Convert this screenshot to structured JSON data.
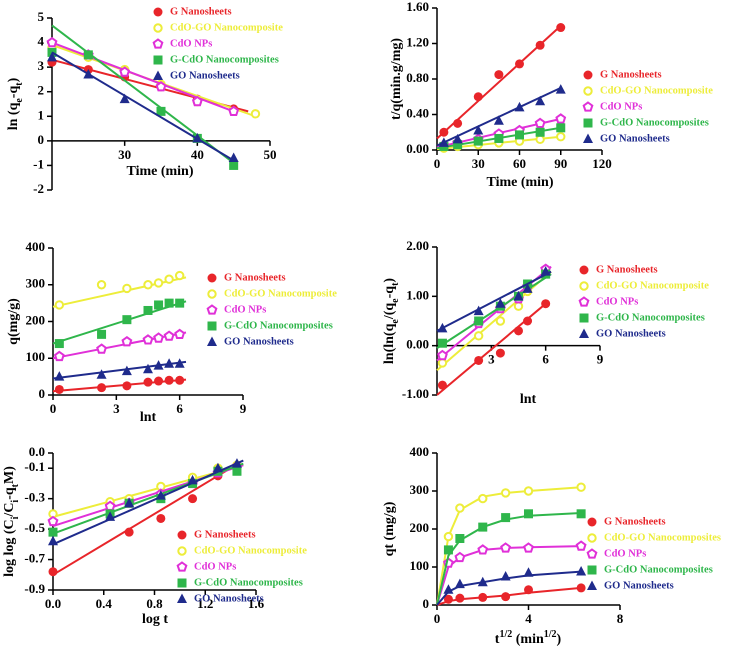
{
  "chart_data": [
    {
      "type": "scatter",
      "xlabel": "Time (min)",
      "ylabel": [
        "ln (q",
        "e",
        "-q",
        "t",
        ")"
      ],
      "xlim": [
        20,
        50
      ],
      "xticks": [
        30,
        40,
        50
      ],
      "ylim": [
        -2,
        5
      ],
      "yticks": [
        -2,
        -1,
        0,
        1,
        2,
        3,
        4,
        5
      ],
      "x_axis_at": 0,
      "series": [
        {
          "name": "G Nanosheets",
          "color": "#e8252a",
          "marker": "circle",
          "x": [
            20,
            25,
            30,
            35,
            40,
            45
          ],
          "values": [
            3.2,
            2.9,
            2.6,
            2.2,
            1.7,
            1.3
          ],
          "fit_x": [
            20,
            47
          ],
          "fit_y": [
            3.3,
            1.2
          ]
        },
        {
          "name": "CdO-GO Nanocomposite",
          "color": "#eded3a",
          "marker": "ring",
          "x": [
            20,
            25,
            30,
            35,
            40,
            48
          ],
          "values": [
            3.8,
            3.4,
            2.9,
            2.3,
            1.6,
            1.1
          ],
          "fit_x": [
            20,
            48
          ],
          "fit_y": [
            3.9,
            1.0
          ]
        },
        {
          "name": "CdO NPs",
          "color": "#e030d8",
          "marker": "pentagon",
          "x": [
            20,
            25,
            30,
            35,
            40,
            45
          ],
          "values": [
            4.0,
            3.5,
            2.8,
            2.2,
            1.6,
            1.2
          ],
          "fit_x": [
            20,
            45
          ],
          "fit_y": [
            4.0,
            1.2
          ]
        },
        {
          "name": "G-CdO Nanocomposites",
          "color": "#2fb64b",
          "marker": "square",
          "x": [
            20,
            25,
            35,
            40,
            45
          ],
          "values": [
            3.6,
            3.5,
            1.2,
            0.1,
            -1.0
          ],
          "fit_x": [
            20,
            45
          ],
          "fit_y": [
            4.7,
            -0.9
          ]
        },
        {
          "name": "GO Nanosheets",
          "color": "#1f2b8c",
          "marker": "triangle",
          "x": [
            20,
            25,
            30,
            40,
            45
          ],
          "values": [
            3.4,
            2.7,
            1.7,
            0.1,
            -0.7
          ],
          "fit_x": [
            20,
            45
          ],
          "fit_y": [
            3.6,
            -0.8
          ]
        }
      ]
    },
    {
      "type": "scatter",
      "xlabel": "Time (min)",
      "ylabel": "t/q(min.g/mg)",
      "xlim": [
        0,
        120
      ],
      "xticks": [
        0,
        30,
        60,
        90,
        120
      ],
      "ylim": [
        0,
        1.6
      ],
      "yticks": [
        {
          "value": 0,
          "label": "0.00"
        },
        {
          "value": 0.4,
          "label": "0.40"
        },
        {
          "value": 0.8,
          "label": "0.80"
        },
        {
          "value": 1.2,
          "label": "1.20"
        },
        {
          "value": 1.6,
          "label": "1.60"
        }
      ],
      "series": [
        {
          "name": "G Nanosheets",
          "color": "#e8252a",
          "marker": "circle",
          "x": [
            5,
            15,
            30,
            45,
            60,
            75,
            90
          ],
          "values": [
            0.2,
            0.3,
            0.6,
            0.85,
            0.97,
            1.18,
            1.38
          ],
          "fit_x": [
            0,
            90
          ],
          "fit_y": [
            0.13,
            1.4
          ]
        },
        {
          "name": "CdO-GO Nanocomposite",
          "color": "#eded3a",
          "marker": "ring",
          "x": [
            5,
            15,
            30,
            45,
            60,
            75,
            90
          ],
          "values": [
            0.02,
            0.04,
            0.06,
            0.08,
            0.1,
            0.12,
            0.15
          ],
          "fit_x": [
            0,
            90
          ],
          "fit_y": [
            0.01,
            0.15
          ]
        },
        {
          "name": "CdO NPs",
          "color": "#e030d8",
          "marker": "pentagon",
          "x": [
            5,
            15,
            30,
            45,
            60,
            75,
            90
          ],
          "values": [
            0.05,
            0.08,
            0.12,
            0.18,
            0.22,
            0.3,
            0.35
          ],
          "fit_x": [
            0,
            90
          ],
          "fit_y": [
            0.03,
            0.35
          ]
        },
        {
          "name": "G-CdO Nanocomposites",
          "color": "#2fb64b",
          "marker": "square",
          "x": [
            5,
            15,
            30,
            45,
            60,
            75,
            90
          ],
          "values": [
            0.04,
            0.06,
            0.1,
            0.13,
            0.17,
            0.2,
            0.25
          ],
          "fit_x": [
            0,
            90
          ],
          "fit_y": [
            0.02,
            0.25
          ]
        },
        {
          "name": "GO Nanosheets",
          "color": "#1f2b8c",
          "marker": "triangle",
          "x": [
            5,
            15,
            30,
            45,
            60,
            75,
            90
          ],
          "values": [
            0.08,
            0.12,
            0.22,
            0.33,
            0.48,
            0.55,
            0.68
          ],
          "fit_x": [
            0,
            90
          ],
          "fit_y": [
            0.05,
            0.7
          ]
        }
      ]
    },
    {
      "type": "scatter",
      "xlabel": "lnt",
      "ylabel": "q(mg/g)",
      "xlim": [
        0,
        9
      ],
      "xticks": [
        0,
        3,
        6,
        9
      ],
      "ylim": [
        0,
        400
      ],
      "yticks": [
        0,
        100,
        200,
        300,
        400
      ],
      "series": [
        {
          "name": "G Nanosheets",
          "color": "#e8252a",
          "marker": "circle",
          "x": [
            0.3,
            2.3,
            3.5,
            4.5,
            5,
            5.5,
            6
          ],
          "values": [
            15,
            20,
            25,
            35,
            38,
            40,
            40
          ],
          "fit_x": [
            0,
            6.3
          ],
          "fit_y": [
            10,
            42
          ]
        },
        {
          "name": "CdO-GO Nanocomposite",
          "color": "#eded3a",
          "marker": "ring",
          "x": [
            0.3,
            2.3,
            3.5,
            4.5,
            5,
            5.5,
            6
          ],
          "values": [
            245,
            300,
            290,
            300,
            305,
            315,
            325
          ],
          "fit_x": [
            0,
            6.3
          ],
          "fit_y": [
            240,
            320
          ]
        },
        {
          "name": "CdO NPs",
          "color": "#e030d8",
          "marker": "pentagon",
          "x": [
            0.3,
            2.3,
            3.5,
            4.5,
            5,
            5.5,
            6
          ],
          "values": [
            105,
            125,
            145,
            150,
            155,
            160,
            165
          ],
          "fit_x": [
            0,
            6.3
          ],
          "fit_y": [
            100,
            170
          ]
        },
        {
          "name": "G-CdO Nanocomposites",
          "color": "#2fb64b",
          "marker": "square",
          "x": [
            0.3,
            2.3,
            3.5,
            4.5,
            5,
            5.5,
            6
          ],
          "values": [
            140,
            165,
            205,
            230,
            245,
            250,
            250
          ],
          "fit_x": [
            0,
            6.3
          ],
          "fit_y": [
            140,
            255
          ]
        },
        {
          "name": "GO Nanosheets",
          "color": "#1f2b8c",
          "marker": "triangle",
          "x": [
            0.3,
            2.3,
            3.5,
            4.5,
            5,
            5.5,
            6
          ],
          "values": [
            50,
            55,
            65,
            70,
            80,
            85,
            85
          ],
          "fit_x": [
            0,
            6.3
          ],
          "fit_y": [
            45,
            90
          ]
        }
      ]
    },
    {
      "type": "scatter",
      "xlabel": "lnt",
      "ylabel": [
        "ln(ln(q",
        "e",
        "/(q",
        "e",
        "-q",
        "t",
        ")"
      ],
      "xlim": [
        0,
        9
      ],
      "xticks": [
        3,
        6,
        9
      ],
      "ylim": [
        -1,
        2
      ],
      "x_axis_at": 0,
      "yticks": [
        {
          "value": -1,
          "label": "-1.00"
        },
        {
          "value": 0,
          "label": "0.00"
        },
        {
          "value": 1,
          "label": "1.00"
        },
        {
          "value": 2,
          "label": "2.00"
        }
      ],
      "series": [
        {
          "name": "G Nanosheets",
          "color": "#e8252a",
          "marker": "circle",
          "x": [
            0.3,
            2.3,
            3.5,
            4.5,
            5,
            6
          ],
          "values": [
            -0.8,
            -0.3,
            -0.15,
            0.3,
            0.5,
            0.85
          ],
          "fit_x": [
            0,
            6
          ],
          "fit_y": [
            -1.0,
            0.85
          ]
        },
        {
          "name": "CdO-GO Nanocomposite",
          "color": "#eded3a",
          "marker": "ring",
          "x": [
            0.3,
            2.3,
            3.5,
            4.5,
            5,
            6
          ],
          "values": [
            -0.35,
            0.2,
            0.5,
            0.8,
            1.1,
            1.5
          ],
          "fit_x": [
            0,
            6.3
          ],
          "fit_y": [
            -0.5,
            1.5
          ]
        },
        {
          "name": "CdO NPs",
          "color": "#e030d8",
          "marker": "pentagon",
          "x": [
            0.3,
            2.3,
            3.5,
            4.5,
            5,
            6
          ],
          "values": [
            -0.2,
            0.45,
            0.75,
            0.95,
            1.2,
            1.55
          ],
          "fit_x": [
            0,
            6.3
          ],
          "fit_y": [
            -0.3,
            1.6
          ]
        },
        {
          "name": "G-CdO Nanocomposites",
          "color": "#2fb64b",
          "marker": "square",
          "x": [
            0.3,
            2.3,
            3.5,
            4.5,
            5,
            6
          ],
          "values": [
            0.05,
            0.5,
            0.8,
            1.0,
            1.25,
            1.45
          ],
          "fit_x": [
            0,
            6.3
          ],
          "fit_y": [
            -0.05,
            1.45
          ]
        },
        {
          "name": "GO Nanosheets",
          "color": "#1f2b8c",
          "marker": "triangle",
          "x": [
            0.3,
            2.3,
            3.5,
            4.5,
            5,
            6
          ],
          "values": [
            0.35,
            0.7,
            0.85,
            1.0,
            1.15,
            1.5
          ],
          "fit_x": [
            0,
            6.3
          ],
          "fit_y": [
            0.3,
            1.5
          ]
        }
      ]
    },
    {
      "type": "scatter",
      "xlabel": "log t",
      "ylabel": [
        "log log (C",
        "i",
        "/C",
        "i",
        "-q",
        "t",
        "M)"
      ],
      "xlim": [
        0,
        1.6
      ],
      "xticks": [
        {
          "value": 0,
          "label": "0.0"
        },
        0.4,
        0.8,
        1.2,
        1.6
      ],
      "ylim": [
        -0.9,
        0
      ],
      "yticks": [
        -0.9,
        -0.7,
        -0.5,
        -0.3,
        -0.1,
        {
          "value": 0,
          "label": "0.0"
        }
      ],
      "series": [
        {
          "name": "G Nanosheets",
          "color": "#e8252a",
          "marker": "circle",
          "x": [
            0,
            0.6,
            0.85,
            1.1,
            1.3,
            1.45
          ],
          "values": [
            -0.78,
            -0.52,
            -0.43,
            -0.3,
            -0.15,
            -0.1
          ],
          "fit_x": [
            0,
            1.4
          ],
          "fit_y": [
            -0.8,
            -0.1
          ]
        },
        {
          "name": "CdO-GO Nanocomposite",
          "color": "#eded3a",
          "marker": "ring",
          "x": [
            0,
            0.45,
            0.6,
            0.85,
            1.1,
            1.3,
            1.45
          ],
          "values": [
            -0.4,
            -0.32,
            -0.3,
            -0.22,
            -0.16,
            -0.1,
            -0.08
          ],
          "fit_x": [
            0,
            1.5
          ],
          "fit_y": [
            -0.42,
            -0.08
          ]
        },
        {
          "name": "CdO NPs",
          "color": "#e030d8",
          "marker": "pentagon",
          "x": [
            0,
            0.45,
            0.6,
            0.85,
            1.1,
            1.3,
            1.45
          ],
          "values": [
            -0.45,
            -0.35,
            -0.33,
            -0.27,
            -0.2,
            -0.13,
            -0.09
          ],
          "fit_x": [
            0,
            1.5
          ],
          "fit_y": [
            -0.48,
            -0.08
          ]
        },
        {
          "name": "G-CdO Nanocomposites",
          "color": "#2fb64b",
          "marker": "square",
          "x": [
            0,
            0.45,
            0.6,
            0.85,
            1.1,
            1.3,
            1.45
          ],
          "values": [
            -0.52,
            -0.4,
            -0.33,
            -0.3,
            -0.2,
            -0.12,
            -0.12
          ],
          "fit_x": [
            0,
            1.5
          ],
          "fit_y": [
            -0.53,
            -0.07
          ]
        },
        {
          "name": "GO Nanosheets",
          "color": "#1f2b8c",
          "marker": "triangle",
          "x": [
            0,
            0.45,
            0.6,
            0.85,
            1.1,
            1.3,
            1.45
          ],
          "values": [
            -0.58,
            -0.42,
            -0.33,
            -0.28,
            -0.18,
            -0.1,
            -0.07
          ],
          "fit_x": [
            0,
            1.5
          ],
          "fit_y": [
            -0.6,
            -0.05
          ]
        }
      ]
    },
    {
      "type": "scatter",
      "xlabel": [
        "t",
        "1/2",
        " (min",
        "1/2",
        ")"
      ],
      "ylabel": "qt (mg/g)",
      "xlim": [
        0,
        8
      ],
      "xticks": [
        0,
        4,
        8
      ],
      "ylim": [
        0,
        400
      ],
      "yticks": [
        0,
        100,
        200,
        300,
        400
      ],
      "series": [
        {
          "name": "G Nanosheets",
          "color": "#e8252a",
          "marker": "circle",
          "x": [
            0.5,
            1,
            2,
            3,
            4,
            6.3
          ],
          "values": [
            15,
            18,
            20,
            22,
            40,
            45
          ],
          "fit_x": [
            0,
            0.5,
            1,
            2,
            3,
            4,
            6.3
          ],
          "fit_y": [
            0,
            10,
            15,
            20,
            25,
            32,
            45
          ]
        },
        {
          "name": "CdO-GO Nanocomposites",
          "color": "#eded3a",
          "marker": "ring",
          "x": [
            0.5,
            1,
            2,
            3,
            4,
            6.3
          ],
          "values": [
            180,
            255,
            280,
            295,
            300,
            310
          ],
          "fit_x": [
            0,
            0.5,
            1,
            2,
            3,
            4,
            6.3
          ],
          "fit_y": [
            0,
            180,
            250,
            285,
            295,
            300,
            310
          ]
        },
        {
          "name": "CdO NPs",
          "color": "#e030d8",
          "marker": "pentagon",
          "x": [
            0.5,
            1,
            2,
            3,
            4,
            6.3
          ],
          "values": [
            110,
            125,
            145,
            150,
            150,
            155
          ],
          "fit_x": [
            0,
            0.5,
            1,
            2,
            3,
            4,
            6.3
          ],
          "fit_y": [
            0,
            100,
            125,
            145,
            150,
            152,
            155
          ]
        },
        {
          "name": "G-CdO Nanocomposites",
          "color": "#2fb64b",
          "marker": "square",
          "x": [
            0.5,
            1,
            2,
            3,
            4,
            6.3
          ],
          "values": [
            145,
            175,
            205,
            230,
            240,
            240
          ],
          "fit_x": [
            0,
            0.5,
            1,
            2,
            3,
            4,
            6.3
          ],
          "fit_y": [
            0,
            130,
            170,
            205,
            225,
            235,
            242
          ]
        },
        {
          "name": "GO Nanosheets",
          "color": "#1f2b8c",
          "marker": "triangle",
          "x": [
            0.5,
            1,
            2,
            3,
            4,
            6.3
          ],
          "values": [
            40,
            55,
            60,
            75,
            85,
            88
          ],
          "fit_x": [
            0,
            0.5,
            1,
            2,
            3,
            4,
            6.3
          ],
          "fit_y": [
            0,
            35,
            50,
            60,
            70,
            78,
            88
          ]
        }
      ]
    }
  ]
}
